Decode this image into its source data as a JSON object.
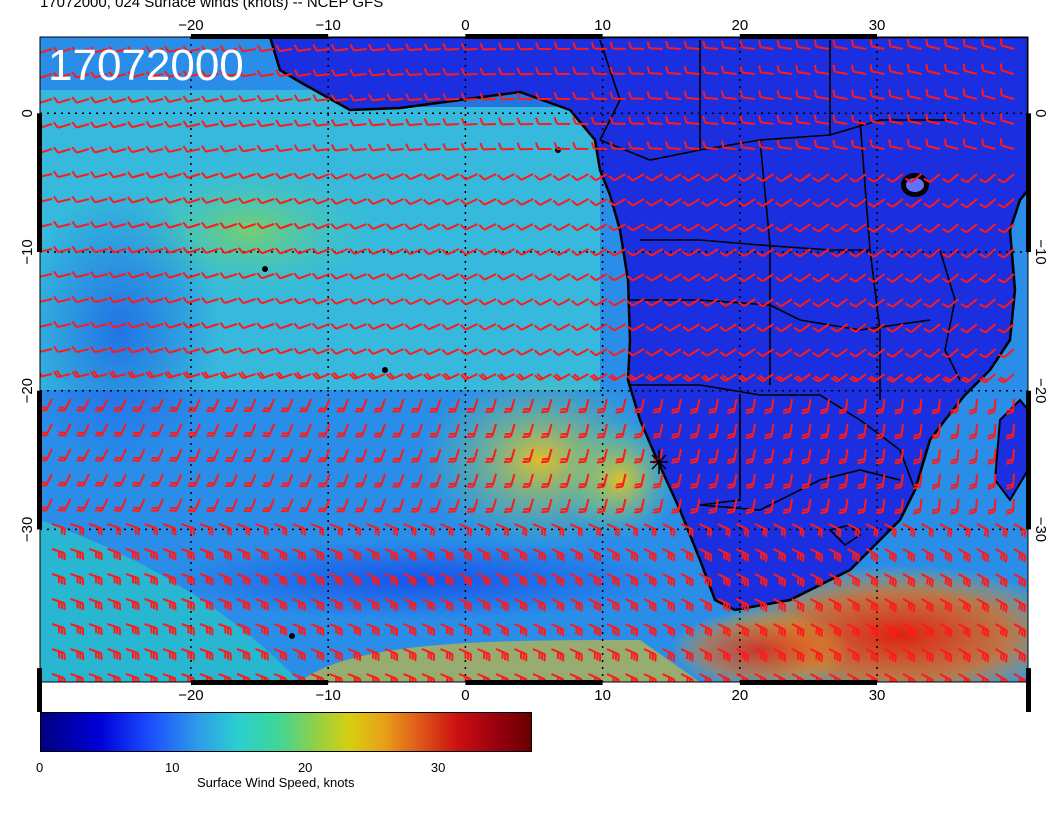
{
  "title": "17072000, 024 Surface winds (knots) -- NCEP GFS",
  "stamp": "17072000",
  "map": {
    "lon_range": [
      -31,
      41
    ],
    "lat_range": [
      -41,
      5.5
    ],
    "lon_ticks": [
      "−20",
      "−10",
      "0",
      "10",
      "20",
      "30"
    ],
    "lat_ticks": [
      "0",
      "−10",
      "−20",
      "−30"
    ],
    "barb_color": "#ff1a1a",
    "ocean_color": "#1f6fe0",
    "land_color": "#1a2ee0",
    "grid_style": "dotted"
  },
  "colorbar": {
    "label": "Surface Wind Speed, knots",
    "ticks": [
      "0",
      "10",
      "20",
      "30"
    ],
    "range": [
      0,
      37
    ]
  }
}
